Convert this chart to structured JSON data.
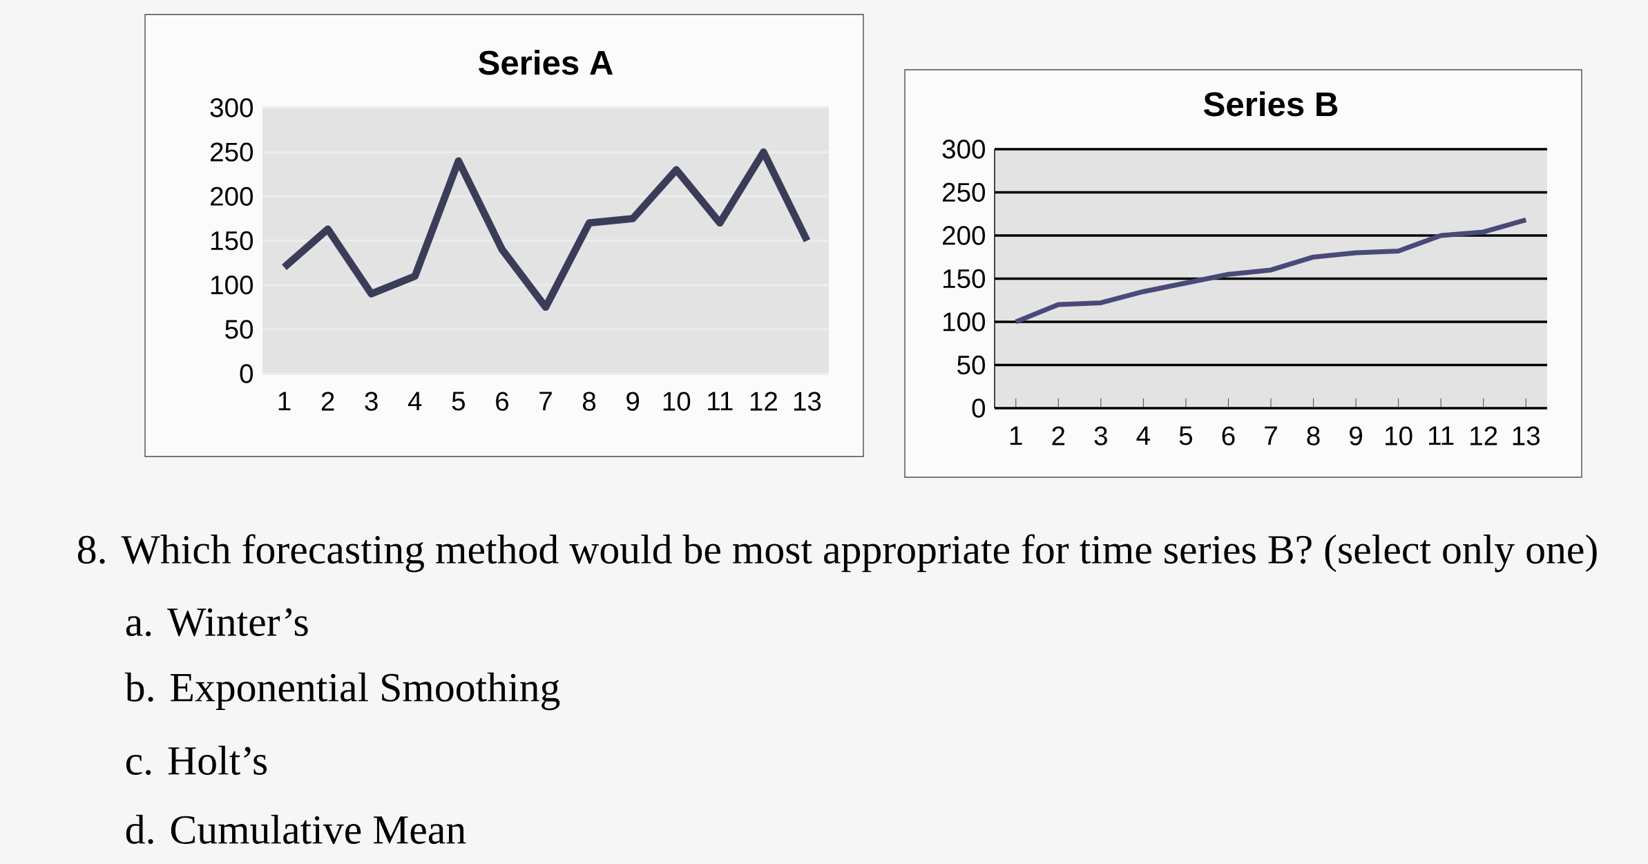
{
  "chart_data": [
    {
      "type": "line",
      "title": "Series A",
      "categories": [
        "1",
        "2",
        "3",
        "4",
        "5",
        "6",
        "7",
        "8",
        "9",
        "10",
        "11",
        "12",
        "13"
      ],
      "series": [
        {
          "color": "#3b3d58",
          "values": [
            120,
            163,
            90,
            110,
            240,
            140,
            75,
            170,
            175,
            230,
            170,
            250,
            150
          ]
        }
      ],
      "ylim": [
        0,
        300
      ],
      "yticks": [
        0,
        50,
        100,
        150,
        200,
        250,
        300
      ],
      "grid": "y"
    },
    {
      "type": "line",
      "title": "Series B",
      "categories": [
        "1",
        "2",
        "3",
        "4",
        "5",
        "6",
        "7",
        "8",
        "9",
        "10",
        "11",
        "12",
        "13"
      ],
      "series": [
        {
          "color": "#4a4a78",
          "values": [
            100,
            120,
            122,
            135,
            145,
            155,
            160,
            175,
            180,
            182,
            200,
            204,
            218
          ]
        }
      ],
      "ylim": [
        0,
        300
      ],
      "yticks": [
        0,
        50,
        100,
        150,
        200,
        250,
        300
      ],
      "grid": "y"
    },
    {
      "type": "other",
      "annotations": [
        "8.  Which forecasting method would be most appropriate for time series B? (select only one)",
        "a.  Winter’s",
        "b.  Exponential Smoothing",
        "c.  Holt’s",
        "d.  Cumulative Mean"
      ]
    }
  ]
}
